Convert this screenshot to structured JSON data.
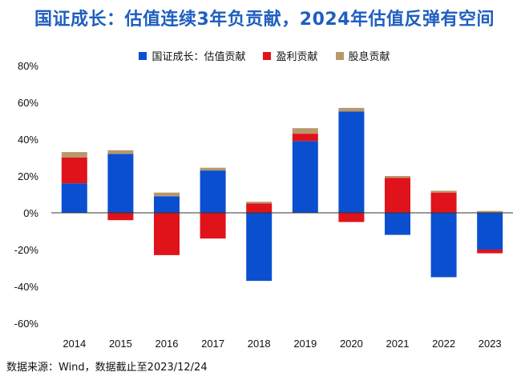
{
  "title": "国证成长：估值连续3年负贡献，2024年估值反弹有空间",
  "source": "数据来源：Wind，数据截止至2023/12/24",
  "chart_data": {
    "type": "bar",
    "stacked": true,
    "categories": [
      "2014",
      "2015",
      "2016",
      "2017",
      "2018",
      "2019",
      "2020",
      "2021",
      "2022",
      "2023"
    ],
    "series": [
      {
        "name": "国证成长：估值贡献",
        "color": "#0a4fcf",
        "values": [
          16,
          32,
          9,
          23,
          -37,
          39,
          55,
          -12,
          -35,
          -20
        ]
      },
      {
        "name": "盈利贡献",
        "color": "#e0131b",
        "values": [
          14,
          -4,
          -23,
          -14,
          5,
          4,
          -5,
          19,
          11,
          -2
        ]
      },
      {
        "name": "股息贡献",
        "color": "#b8976b",
        "values": [
          3,
          2,
          2,
          1.5,
          1,
          3,
          2,
          1,
          1,
          1
        ]
      }
    ],
    "ylim": [
      -60,
      80
    ],
    "yticks": [
      80,
      60,
      40,
      20,
      0,
      -20,
      -40,
      -60
    ],
    "ytick_labels": [
      "80%",
      "60%",
      "40%",
      "20%",
      "0%",
      "-20%",
      "-40%",
      "-60%"
    ],
    "legend_position": "top-center",
    "grid": false
  }
}
